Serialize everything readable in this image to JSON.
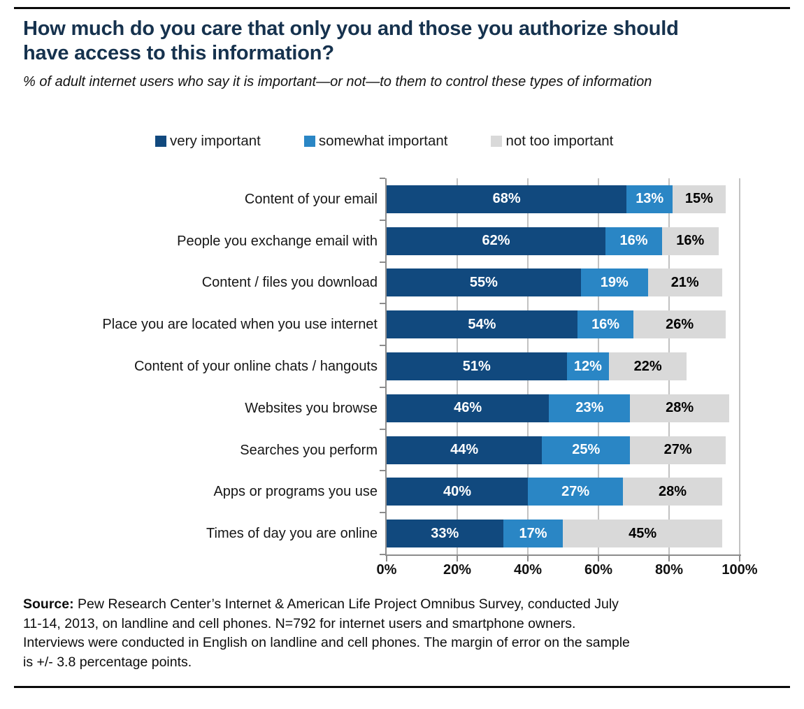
{
  "chart_data": {
    "type": "bar",
    "orientation": "horizontal",
    "stacked": true,
    "title": "How much do you care that only you and those you authorize should have access to this information?",
    "subtitle": "% of adult internet users who say it is important—or not—to them to control these types of information",
    "categories": [
      "Content of your email",
      "People you exchange email with",
      "Content / files you download",
      "Place you are located when you use internet",
      "Content of your online chats / hangouts",
      "Websites you browse",
      "Searches you perform",
      "Apps or programs you use",
      "Times of day you are online"
    ],
    "series": [
      {
        "name": "very important",
        "color": "#11497E",
        "values": [
          68,
          62,
          55,
          54,
          51,
          46,
          44,
          40,
          33
        ]
      },
      {
        "name": "somewhat important",
        "color": "#2A86C5",
        "values": [
          13,
          16,
          19,
          16,
          12,
          23,
          25,
          27,
          17
        ]
      },
      {
        "name": "not too important",
        "color": "#D9D9D9",
        "values": [
          15,
          16,
          21,
          26,
          22,
          28,
          27,
          28,
          45
        ]
      }
    ],
    "value_label_suffix": "%",
    "value_label_colors": [
      "#ffffff",
      "#ffffff",
      "#000000"
    ],
    "x_axis": {
      "min": 0,
      "max": 100,
      "ticks": [
        "0%",
        "20%",
        "40%",
        "60%",
        "80%",
        "100%"
      ]
    },
    "grid": true,
    "legend_position": "top"
  },
  "source": {
    "label": "Source:",
    "text": "Pew Research Center’s Internet & American Life Project Omnibus Survey, conducted July 11-14, 2013, on landline and cell phones. N=792 for internet users and smartphone owners. Interviews were conducted in English on landline and cell phones. The margin of error on the sample is +/- 3.8 percentage points."
  }
}
